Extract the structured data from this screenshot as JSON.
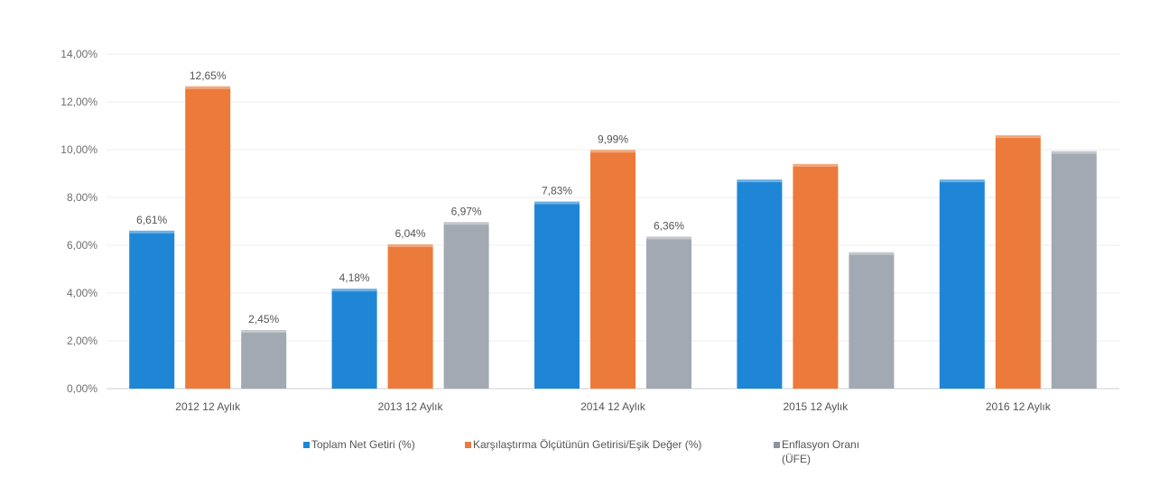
{
  "chart_data": {
    "type": "bar",
    "categories": [
      "2012 12 Aylık",
      "2013 12 Aylık",
      "2014 12 Aylık",
      "2015 12 Aylık",
      "2016 12 Aylık"
    ],
    "series": [
      {
        "name": "Toplam Net Getiri (%)",
        "color": "#1f86d6",
        "values": [
          6.61,
          4.18,
          7.83,
          8.75,
          8.75
        ],
        "labels": [
          "6,61%",
          "4,18%",
          "7,83%",
          "",
          ""
        ]
      },
      {
        "name": "Karşılaştırma Ölçütünün Getirisi/Eşik Değer (%)",
        "color": "#ec7a3a",
        "values": [
          12.65,
          6.04,
          9.99,
          9.4,
          10.6
        ],
        "labels": [
          "12,65%",
          "6,04%",
          "9,99%",
          "",
          ""
        ]
      },
      {
        "name": "Enflasyon Oranı (ÜFE)",
        "color": "#a3a9b2",
        "values": [
          2.45,
          6.97,
          6.36,
          5.71,
          9.94
        ],
        "labels": [
          "2,45%",
          "6,97%",
          "6,36%",
          "",
          ""
        ]
      }
    ],
    "y_ticks": [
      "0,00%",
      "2,00%",
      "4,00%",
      "6,00%",
      "8,00%",
      "10,00%",
      "12,00%",
      "14,00%"
    ],
    "ylim": [
      0,
      14
    ],
    "grid": true,
    "legend_position": "bottom",
    "legend": {
      "item1": "Toplam Net Getiri (%)",
      "item2": "Karşılaştırma Ölçütünün Getirisi/Eşik Değer (%)",
      "item3_line1": "Enflasyon Oranı",
      "item3_line2": "(ÜFE)"
    }
  }
}
